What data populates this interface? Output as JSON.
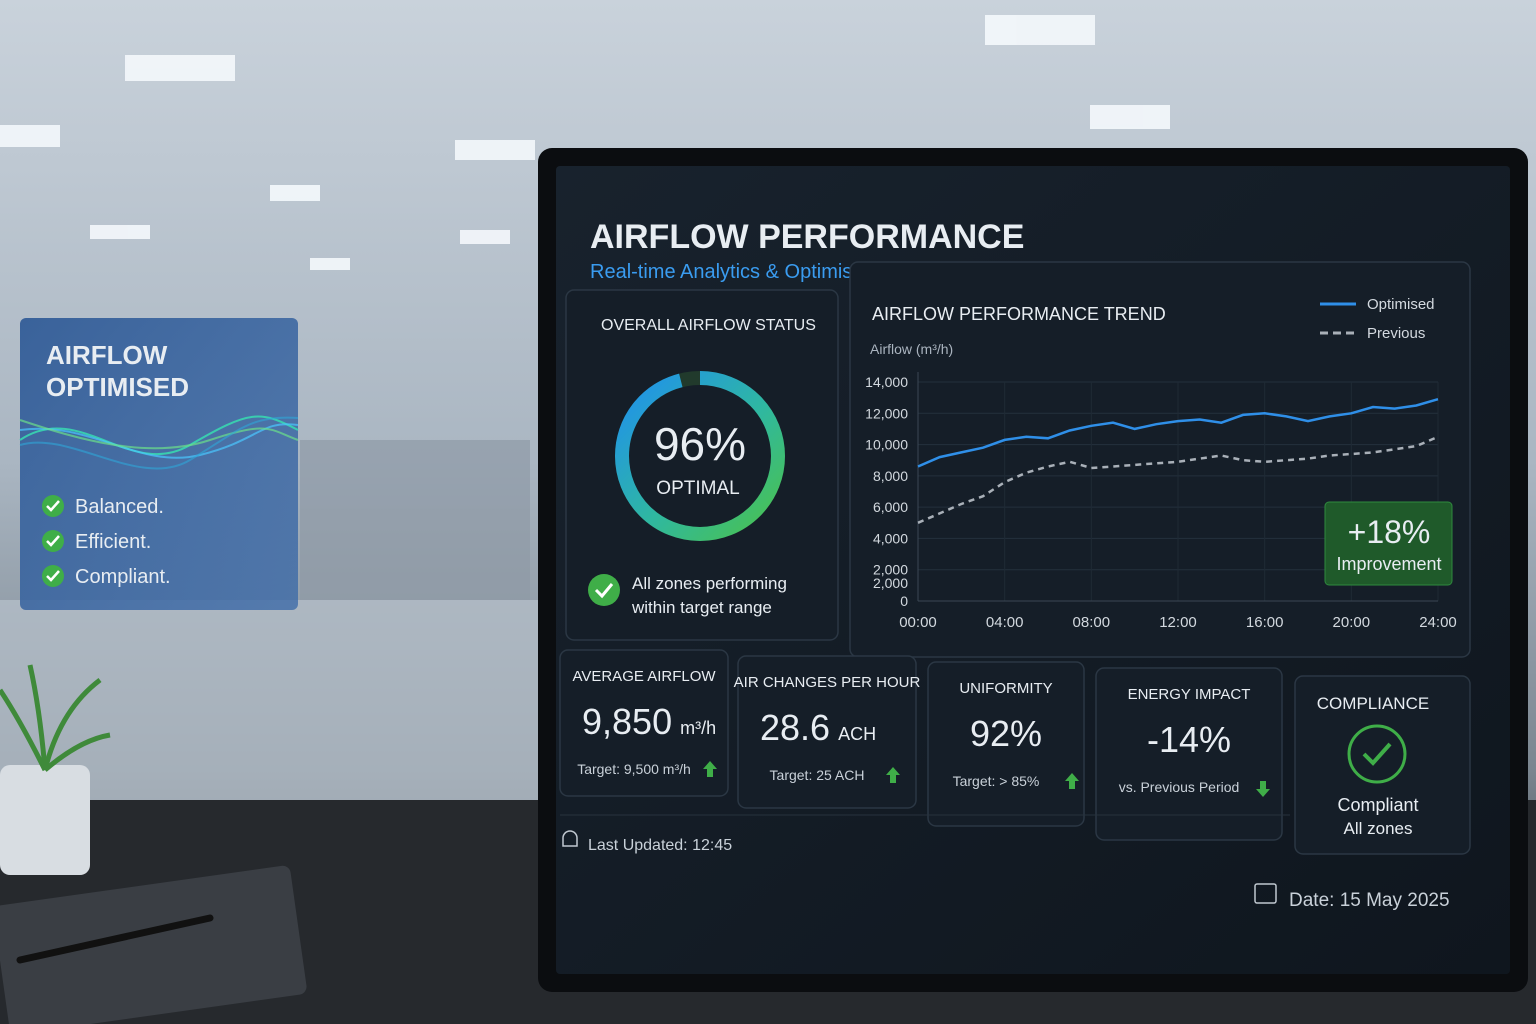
{
  "header": {
    "title": "AIRFLOW PERFORMANCE",
    "subtitle": "Real-time Analytics & Optimisation"
  },
  "side_card": {
    "title_lines": [
      "AIRFLOW",
      "OPTIMISED"
    ],
    "items": [
      "Balanced.",
      "Efficient.",
      "Compliant."
    ]
  },
  "status": {
    "title": "OVERALL AIRFLOW STATUS",
    "value": 96,
    "value_label": "96%",
    "state": "OPTIMAL",
    "note_lines": [
      "All zones performing",
      "within target range"
    ]
  },
  "trend": {
    "type": "line",
    "title": "AIRFLOW PERFORMANCE TREND",
    "y_label": "Airflow (m³/h)",
    "x": [
      0,
      1,
      2,
      3,
      4,
      5,
      6,
      7,
      8,
      9,
      10,
      11,
      12,
      13,
      14,
      15,
      16,
      17,
      18,
      19,
      20,
      21,
      22,
      23,
      24
    ],
    "xlim": [
      0,
      24
    ],
    "xticks": [
      {
        "value": 0,
        "label": "00:00"
      },
      {
        "value": 4,
        "label": "04:00"
      },
      {
        "value": 8,
        "label": "08:00"
      },
      {
        "value": 12,
        "label": "12:00"
      },
      {
        "value": 16,
        "label": "16:00"
      },
      {
        "value": 20,
        "label": "20:00"
      },
      {
        "value": 24,
        "label": "24:00"
      }
    ],
    "ylim": [
      0,
      14000
    ],
    "yticks": [
      {
        "value": 14000,
        "label": "14,000"
      },
      {
        "value": 12000,
        "label": "12,000"
      },
      {
        "value": 10000,
        "label": "10,000"
      },
      {
        "value": 8000,
        "label": "8,000"
      },
      {
        "value": 6000,
        "label": "6,000"
      },
      {
        "value": 4000,
        "label": "4,000"
      },
      {
        "value": 2000,
        "label": "2,000"
      },
      0
    ],
    "stray_tick_label": "2,000",
    "grid": true,
    "series": [
      {
        "name": "Optimised",
        "color": "#2f8fe8",
        "dash": false,
        "values": [
          8600,
          9200,
          9500,
          9800,
          10300,
          10500,
          10400,
          10900,
          11200,
          11400,
          11000,
          11300,
          11500,
          11600,
          11400,
          11900,
          12000,
          11800,
          11500,
          11800,
          12000,
          12400,
          12300,
          12500,
          12900
        ]
      },
      {
        "name": "Previous",
        "color": "#a9b0b8",
        "dash": true,
        "values": [
          5000,
          5600,
          6200,
          6700,
          7600,
          8200,
          8600,
          8900,
          8500,
          8600,
          8700,
          8800,
          8900,
          9100,
          9300,
          9000,
          8900,
          9000,
          9100,
          9300,
          9400,
          9500,
          9700,
          9900,
          10500
        ]
      }
    ],
    "badge": {
      "value": "+18%",
      "label": "Improvement"
    }
  },
  "kpis": [
    {
      "title": "AVERAGE AIRFLOW",
      "value": "9,850",
      "unit": "m³/h",
      "target": "Target: 9,500 m³/h",
      "trend": "up"
    },
    {
      "title": "AIR CHANGES PER HOUR",
      "value": "28.6",
      "unit": "ACH",
      "target": "Target: 25 ACH",
      "trend": "up"
    },
    {
      "title": "UNIFORMITY",
      "value": "92%",
      "target": "Target: > 85%",
      "trend": "up"
    },
    {
      "title": "ENERGY IMPACT",
      "value": "-14%",
      "target": "vs. Previous Period",
      "trend": "down"
    }
  ],
  "compliance": {
    "title": "COMPLIANCE",
    "state": "Compliant",
    "detail": "All zones"
  },
  "footer": {
    "last_updated": "Last Updated: 12:45",
    "date": "Date: 15 May 2025"
  }
}
